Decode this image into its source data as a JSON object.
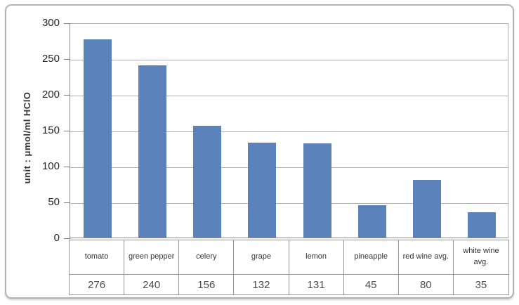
{
  "chart_data": {
    "type": "bar",
    "categories": [
      "tomato",
      "green pepper",
      "celery",
      "grape",
      "lemon",
      "pineapple",
      "red wine avg.",
      "white wine avg."
    ],
    "values": [
      276,
      240,
      156,
      132,
      131,
      45,
      80,
      35
    ],
    "title": "",
    "xlabel": "",
    "ylabel": "unit : μmol/ml HClO",
    "ylim": [
      0,
      300
    ],
    "yticks": [
      0,
      50,
      100,
      150,
      200,
      250,
      300
    ],
    "grid": true,
    "legend_position": "none",
    "bar_color": "#5b82ba",
    "gridline_color": "#b0b0b0",
    "axis_color": "#8c8c8c",
    "table_border_color": "#969696",
    "shows_value_table": true
  }
}
